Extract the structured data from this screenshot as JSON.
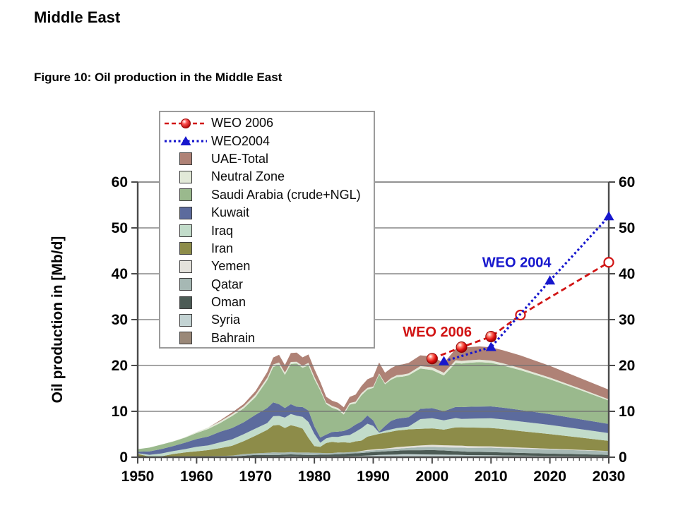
{
  "page": {
    "title": "Middle East",
    "figure_caption": "Figure 10: Oil production in the Middle East"
  },
  "chart_data": {
    "type": "area",
    "stacked": true,
    "title": "",
    "xlabel": "",
    "ylabel": "Oil production in [Mb/d]",
    "xlim": [
      1950,
      2030
    ],
    "ylim": [
      0,
      60
    ],
    "x_ticks": [
      1950,
      1960,
      1970,
      1980,
      1990,
      2000,
      2010,
      2020,
      2030
    ],
    "y_ticks": [
      0,
      10,
      20,
      30,
      40,
      50,
      60
    ],
    "grid": "horizontal",
    "legend_position": "top-left",
    "years": [
      1950,
      1952,
      1954,
      1956,
      1958,
      1960,
      1962,
      1964,
      1966,
      1968,
      1970,
      1972,
      1973,
      1974,
      1975,
      1976,
      1977,
      1978,
      1979,
      1980,
      1981,
      1982,
      1983,
      1984,
      1985,
      1986,
      1987,
      1988,
      1989,
      1990,
      1991,
      1992,
      1993,
      1994,
      1995,
      1996,
      1998,
      2000,
      2002,
      2004,
      2005,
      2006,
      2008,
      2010,
      2012,
      2015,
      2020,
      2025,
      2030
    ],
    "series": [
      {
        "name": "Bahrain",
        "color": "#9a8878",
        "values": [
          0.03,
          0.03,
          0.03,
          0.04,
          0.04,
          0.05,
          0.05,
          0.06,
          0.06,
          0.07,
          0.08,
          0.07,
          0.07,
          0.07,
          0.06,
          0.06,
          0.06,
          0.05,
          0.05,
          0.05,
          0.05,
          0.04,
          0.04,
          0.04,
          0.04,
          0.04,
          0.04,
          0.04,
          0.04,
          0.04,
          0.04,
          0.04,
          0.04,
          0.04,
          0.04,
          0.04,
          0.04,
          0.04,
          0.04,
          0.04,
          0.04,
          0.04,
          0.04,
          0.04,
          0.04,
          0.04,
          0.04,
          0.04,
          0.04
        ]
      },
      {
        "name": "Syria",
        "color": "#c3d3d3",
        "values": [
          0,
          0,
          0,
          0,
          0,
          0,
          0,
          0,
          0,
          0.02,
          0.08,
          0.12,
          0.13,
          0.13,
          0.18,
          0.19,
          0.18,
          0.17,
          0.17,
          0.16,
          0.17,
          0.18,
          0.17,
          0.17,
          0.17,
          0.2,
          0.22,
          0.27,
          0.33,
          0.39,
          0.45,
          0.5,
          0.52,
          0.55,
          0.6,
          0.6,
          0.58,
          0.55,
          0.52,
          0.5,
          0.45,
          0.42,
          0.4,
          0.38,
          0.35,
          0.3,
          0.25,
          0.2,
          0.15
        ]
      },
      {
        "name": "Oman",
        "color": "#4c5b55",
        "values": [
          0,
          0,
          0,
          0,
          0,
          0,
          0,
          0,
          0,
          0.24,
          0.33,
          0.28,
          0.29,
          0.29,
          0.34,
          0.37,
          0.34,
          0.31,
          0.29,
          0.28,
          0.32,
          0.33,
          0.39,
          0.42,
          0.5,
          0.56,
          0.58,
          0.62,
          0.64,
          0.68,
          0.71,
          0.74,
          0.78,
          0.81,
          0.85,
          0.89,
          0.9,
          0.96,
          0.9,
          0.78,
          0.78,
          0.74,
          0.72,
          0.7,
          0.65,
          0.6,
          0.5,
          0.42,
          0.32
        ]
      },
      {
        "name": "Qatar",
        "color": "#a6b8b4",
        "values": [
          0.03,
          0.07,
          0.1,
          0.12,
          0.17,
          0.17,
          0.18,
          0.22,
          0.29,
          0.34,
          0.36,
          0.48,
          0.57,
          0.52,
          0.44,
          0.49,
          0.44,
          0.48,
          0.51,
          0.47,
          0.4,
          0.33,
          0.3,
          0.4,
          0.3,
          0.3,
          0.3,
          0.34,
          0.39,
          0.4,
          0.39,
          0.43,
          0.45,
          0.44,
          0.45,
          0.5,
          0.66,
          0.7,
          0.7,
          0.8,
          0.85,
          0.85,
          0.9,
          0.95,
          0.95,
          0.95,
          0.9,
          0.85,
          0.78
        ]
      },
      {
        "name": "Yemen",
        "color": "#e4e2dc",
        "values": [
          0,
          0,
          0,
          0,
          0,
          0,
          0,
          0,
          0,
          0,
          0,
          0,
          0,
          0,
          0,
          0,
          0,
          0,
          0,
          0,
          0,
          0,
          0,
          0,
          0,
          0,
          0.02,
          0.1,
          0.18,
          0.18,
          0.2,
          0.18,
          0.22,
          0.34,
          0.35,
          0.36,
          0.38,
          0.44,
          0.44,
          0.42,
          0.4,
          0.38,
          0.33,
          0.3,
          0.26,
          0.2,
          0.15,
          0.1,
          0.06
        ]
      },
      {
        "name": "Iran",
        "color": "#8d8c49",
        "values": [
          0.66,
          0.03,
          0.06,
          0.54,
          0.82,
          1.07,
          1.33,
          1.71,
          2.13,
          2.84,
          3.85,
          5.02,
          5.86,
          6.02,
          5.35,
          5.88,
          5.66,
          5.24,
          3.17,
          1.47,
          1.32,
          2.21,
          2.44,
          2.17,
          2.25,
          2.04,
          2.3,
          2.24,
          2.9,
          3.1,
          3.3,
          3.43,
          3.54,
          3.62,
          3.64,
          3.69,
          3.63,
          3.6,
          3.42,
          3.97,
          4.0,
          4.05,
          4.05,
          4.0,
          3.9,
          3.6,
          3.2,
          2.7,
          2.2
        ]
      },
      {
        "name": "Iraq",
        "color": "#c2dcca",
        "values": [
          0.14,
          0.39,
          0.63,
          0.63,
          0.73,
          0.97,
          1.01,
          1.26,
          1.39,
          1.5,
          1.55,
          1.47,
          2.02,
          1.97,
          2.26,
          2.42,
          2.35,
          2.56,
          3.48,
          2.65,
          0.9,
          1.01,
          1.1,
          1.21,
          1.43,
          1.69,
          2.08,
          2.69,
          2.83,
          2.04,
          0.28,
          0.43,
          0.51,
          0.55,
          0.56,
          0.6,
          2.12,
          2.2,
          2.02,
          2.03,
          1.83,
          1.9,
          2.0,
          2.1,
          2.1,
          2.1,
          2.0,
          1.85,
          1.7
        ]
      },
      {
        "name": "Kuwait",
        "color": "#5c6b9d",
        "values": [
          0.34,
          0.75,
          0.95,
          1.09,
          1.4,
          1.69,
          1.96,
          2.3,
          2.48,
          2.61,
          2.99,
          3.28,
          3.02,
          2.55,
          2.08,
          2.15,
          1.97,
          2.13,
          2.5,
          1.66,
          1.13,
          0.82,
          1.05,
          1.16,
          1.02,
          1.42,
          1.58,
          1.49,
          1.78,
          1.18,
          0.19,
          1.06,
          1.85,
          2.03,
          2.06,
          2.06,
          2.23,
          2.21,
          1.99,
          2.42,
          2.57,
          2.6,
          2.6,
          2.6,
          2.55,
          2.5,
          2.35,
          2.15,
          2.0
        ]
      },
      {
        "name": "Saudi Arabia (crude+NGL)",
        "color": "#9ab98d",
        "values": [
          0.55,
          0.83,
          0.98,
          1.0,
          1.08,
          1.31,
          1.64,
          1.9,
          2.6,
          3.04,
          3.85,
          6.07,
          7.7,
          8.6,
          7.25,
          8.77,
          9.42,
          8.55,
          9.84,
          10.27,
          10.25,
          6.7,
          5.3,
          4.76,
          3.6,
          5.21,
          4.6,
          5.72,
          5.64,
          7.11,
          12.5,
          9.1,
          8.96,
          9.08,
          9.03,
          9.1,
          8.8,
          8.3,
          7.8,
          9.6,
          9.5,
          9.6,
          9.7,
          9.5,
          9.2,
          8.7,
          7.6,
          6.4,
          5.1
        ]
      },
      {
        "name": "Neutral Zone",
        "color": "#e2e9d8",
        "values": [
          0,
          0,
          0.02,
          0.06,
          0.1,
          0.24,
          0.33,
          0.4,
          0.42,
          0.44,
          0.55,
          0.57,
          0.55,
          0.5,
          0.48,
          0.44,
          0.39,
          0.45,
          0.56,
          0.54,
          0.37,
          0.31,
          0.39,
          0.41,
          0.38,
          0.36,
          0.4,
          0.46,
          0.4,
          0.31,
          0.2,
          0.25,
          0.36,
          0.41,
          0.44,
          0.44,
          0.52,
          0.6,
          0.57,
          0.58,
          0.58,
          0.55,
          0.52,
          0.5,
          0.48,
          0.44,
          0.38,
          0.32,
          0.27
        ]
      },
      {
        "name": "UAE-Total",
        "color": "#af8276",
        "values": [
          0,
          0,
          0,
          0,
          0,
          0,
          0.01,
          0.19,
          0.36,
          0.5,
          0.78,
          1.2,
          1.53,
          1.68,
          1.66,
          1.94,
          2.0,
          1.83,
          1.83,
          1.7,
          1.5,
          1.25,
          1.15,
          1.15,
          1.19,
          1.33,
          1.54,
          1.57,
          1.86,
          2.12,
          2.39,
          2.27,
          2.16,
          2.19,
          2.23,
          2.28,
          2.35,
          2.37,
          2.12,
          2.48,
          2.75,
          2.85,
          2.9,
          2.9,
          2.85,
          2.75,
          2.55,
          2.3,
          2.1
        ]
      }
    ],
    "lines": [
      {
        "name": "WEO 2006",
        "color": "#d11414",
        "style": "dashed",
        "marker": "circle",
        "x": [
          2000,
          2005,
          2010,
          2015,
          2030
        ],
        "y": [
          21.5,
          24,
          26.3,
          31,
          42.5
        ],
        "open_markers": [
          3,
          4
        ],
        "annotation": {
          "text": "WEO 2006",
          "x": 1995,
          "y": 26.3
        }
      },
      {
        "name": "WEO2004",
        "color": "#1717cd",
        "style": "dotted",
        "marker": "triangle",
        "x": [
          2002,
          2010,
          2020,
          2030
        ],
        "y": [
          20.9,
          24,
          38.5,
          52.5
        ],
        "open_markers": [],
        "annotation": {
          "text": "WEO 2004",
          "x": 2008.5,
          "y": 41.5
        }
      }
    ]
  }
}
